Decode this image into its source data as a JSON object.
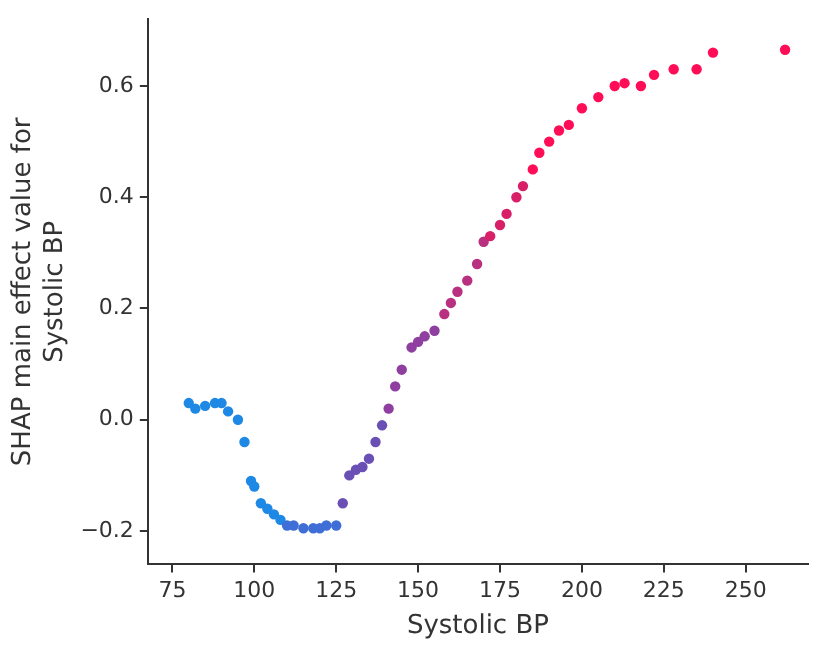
{
  "chart_data": {
    "type": "scatter",
    "xlabel": "Systolic BP",
    "ylabel": "SHAP main effect value for\nSystolic BP",
    "xlim": [
      67.5,
      269
    ],
    "ylim": [
      -0.26,
      0.72
    ],
    "xticks": [
      75,
      100,
      125,
      150,
      175,
      200,
      225,
      250
    ],
    "yticks": [
      {
        "value": -0.2,
        "label": "−0.2"
      },
      {
        "value": 0,
        "label": "0.0"
      },
      {
        "value": 0.2,
        "label": "0.2"
      },
      {
        "value": 0.4,
        "label": "0.4"
      },
      {
        "value": 0.6,
        "label": "0.6"
      }
    ],
    "grid": false,
    "legend": false,
    "marker": "circle",
    "x": [
      80,
      82,
      85,
      88,
      90,
      92,
      95,
      97,
      99,
      100,
      102,
      104,
      106,
      108,
      110,
      112,
      115,
      118,
      120,
      122,
      125,
      127,
      129,
      131,
      133,
      135,
      137,
      139,
      141,
      143,
      145,
      148,
      150,
      152,
      155,
      158,
      160,
      162,
      165,
      168,
      170,
      172,
      175,
      177,
      180,
      182,
      185,
      187,
      190,
      193,
      196,
      200,
      205,
      210,
      213,
      218,
      222,
      228,
      235,
      240,
      262
    ],
    "values": [
      0.03,
      0.02,
      0.025,
      0.03,
      0.03,
      0.015,
      0.0,
      -0.04,
      -0.11,
      -0.12,
      -0.15,
      -0.16,
      -0.17,
      -0.18,
      -0.19,
      -0.19,
      -0.195,
      -0.195,
      -0.195,
      -0.19,
      -0.19,
      -0.15,
      -0.1,
      -0.09,
      -0.085,
      -0.07,
      -0.04,
      -0.01,
      0.02,
      0.06,
      0.09,
      0.13,
      0.14,
      0.15,
      0.16,
      0.19,
      0.21,
      0.23,
      0.25,
      0.28,
      0.32,
      0.33,
      0.35,
      0.37,
      0.4,
      0.42,
      0.45,
      0.48,
      0.5,
      0.52,
      0.53,
      0.56,
      0.58,
      0.6,
      0.605,
      0.6,
      0.62,
      0.63,
      0.63,
      0.66,
      0.665
    ],
    "colors": [
      "#1e88e5",
      "#1e88e5",
      "#1e88e5",
      "#1e88e5",
      "#1e88e5",
      "#1e88e5",
      "#1e88e5",
      "#1e88e5",
      "#1e88e5",
      "#1e88e5",
      "#1e88e5",
      "#1e88e5",
      "#1e88e5",
      "#1e88e5",
      "#3f6fd6",
      "#3f6fd6",
      "#3f6fd6",
      "#3f6fd6",
      "#3f6fd6",
      "#3f6fd6",
      "#3f6fd6",
      "#6a4fb5",
      "#6a4fb5",
      "#6a4fb5",
      "#6a4fb5",
      "#6a4fb5",
      "#6a4fb5",
      "#6a4fb5",
      "#8e3fa0",
      "#8e3fa0",
      "#8e3fa0",
      "#8e3fa0",
      "#8e3fa0",
      "#8e3fa0",
      "#8e3fa0",
      "#b8307f",
      "#b8307f",
      "#b8307f",
      "#b8307f",
      "#b8307f",
      "#b8307f",
      "#d82068",
      "#d82068",
      "#d82068",
      "#d82068",
      "#d82068",
      "#ff0d57",
      "#ff0d57",
      "#ff0d57",
      "#ff0d57",
      "#ff0d57",
      "#ff0d57",
      "#ff0d57",
      "#ff0d57",
      "#ff0d57",
      "#ff0d57",
      "#ff0d57",
      "#ff0d57",
      "#ff0d57",
      "#ff0d57",
      "#ff0d57"
    ]
  }
}
